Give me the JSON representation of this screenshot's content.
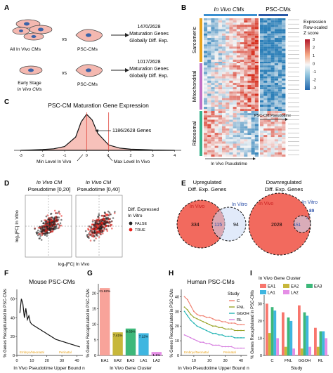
{
  "panels": {
    "A": {
      "letter": "A",
      "row1": {
        "left_label": "All In Vivo CMs",
        "vs": "vs",
        "right_label": "PSC-CMs",
        "result_line1": "1470/2628",
        "result_line2": "Maturation Genes",
        "result_line3": "Globally Diff. Exp."
      },
      "row2": {
        "left_label_line1": "Early Stage",
        "left_label_line2": "In Vivo CMs",
        "vs": "vs",
        "right_label": "PSC-CMs",
        "result_line1": "1017/2628",
        "result_line2": "Maturation Genes",
        "result_line3": "Globally Diff. Exp."
      }
    },
    "B": {
      "letter": "B",
      "col_invivo": "In Vivo CMs",
      "col_psc": "PSC-CMs",
      "row_labels": [
        "Sarcomeric",
        "Mitochondrial",
        "Ribosomal"
      ],
      "x_label": "In Vivo Pseudotime",
      "x_label2": "PSC-CM Pseudotime",
      "legend_title_line1": "Expression",
      "legend_title_line2": "Row-scaled",
      "legend_title_line3": "Z score",
      "legend_ticks": [
        "3",
        "2",
        "1",
        "0",
        "-1",
        "-2",
        "-3"
      ],
      "colors": {
        "high": "#d7301f",
        "mid": "#f7f7f7",
        "low": "#2c7fb8",
        "sarc": "#e8a21a",
        "mito": "#c26fc4",
        "ribo": "#36b28c",
        "invivo_bar": "#3a8fd0",
        "psc_bar": "#2a5aa8"
      }
    },
    "C": {
      "letter": "C",
      "title": "PSC-CM Maturation Gene Expression",
      "annotation": "1186/2628 Genes",
      "min_label": "Min Level In Vivo",
      "max_label": "Max Level In Vivo",
      "x_ticks": [
        "-3",
        "-2",
        "-1",
        "0",
        "1",
        "2",
        "3",
        "4"
      ],
      "chart_data": {
        "type": "area",
        "x": [
          -3,
          -2.5,
          -2,
          -1.5,
          -1,
          -0.5,
          -0.25,
          0,
          0.25,
          0.5,
          1,
          1.5,
          2,
          2.5,
          3,
          3.5,
          4
        ],
        "values": [
          0.0,
          0.01,
          0.02,
          0.04,
          0.1,
          0.35,
          0.75,
          0.95,
          0.8,
          0.45,
          0.14,
          0.06,
          0.03,
          0.02,
          0.01,
          0.005,
          0.0
        ],
        "xlim": [
          -3.3,
          4.3
        ]
      }
    },
    "D": {
      "letter": "D",
      "left_title_line1": "In Vivo CM",
      "left_title_line2": "Pseudotime [0,20]",
      "right_title_line1": "In Vivo CM",
      "right_title_line2": "Pseudotime [0,40]",
      "y_label": "log₂|FC| In Vitro",
      "x_label": "log₂|FC| In Vivo",
      "legend_title_line1": "Diff. Expressed",
      "legend_title_line2": "In Vitro",
      "legend_false": "FALSE",
      "legend_true": "TRUE"
    },
    "E": {
      "letter": "E",
      "up_title_line1": "Upregulated",
      "up_title_line2": "Diff. Exp. Genes",
      "down_title_line1": "Downregulated",
      "down_title_line2": "Diff. Exp. Genes",
      "in_vivo": "In Vivo",
      "in_vitro": "In Vitro",
      "up_values": {
        "vivo_only": "334",
        "both": "115",
        "vitro_only": "94"
      },
      "down_values": {
        "vivo_only": "2028",
        "both": "151",
        "vitro_only": "89"
      }
    },
    "F": {
      "letter": "F",
      "title": "Mouse PSC-CMs",
      "y_label": "% Genes Recapitulated in PSC-CMs",
      "x_label": "In Vivo Pseudotime Upper Bound n",
      "x_ticks": [
        "0",
        "10",
        "20",
        "30",
        "40"
      ],
      "y_ticks": [
        "0",
        "20",
        "40",
        "60"
      ],
      "stage_embryo": "Embryo/Neonatal",
      "stage_peri": "Perinatal",
      "chart_data": {
        "type": "line",
        "x": [
          2,
          3,
          4,
          5,
          6,
          7,
          8,
          9,
          10,
          11,
          12,
          13,
          14,
          15,
          16,
          17,
          18,
          19,
          20,
          21,
          22,
          23,
          24,
          25,
          26,
          27,
          28,
          29,
          30,
          31,
          32,
          33,
          34,
          35,
          36,
          37,
          38,
          39,
          40,
          41,
          42
        ],
        "values": [
          45,
          60,
          55,
          40,
          50,
          38,
          42,
          35,
          33,
          32,
          31,
          30,
          29,
          28,
          27,
          26,
          25,
          24,
          23,
          22,
          21,
          20,
          19,
          18,
          17,
          16.5,
          16,
          15.5,
          15,
          14.5,
          14,
          13.5,
          13,
          12.5,
          12,
          11.5,
          11,
          10.5,
          10,
          9.5,
          9
        ],
        "xlim": [
          0,
          44
        ],
        "ylim": [
          0,
          70
        ]
      }
    },
    "G": {
      "letter": "G",
      "y_label": "% Genes Recapitulated in PSC-CMs",
      "x_label": "In Vivo Gene Cluster",
      "y_ticks": [
        "0",
        "5",
        "10",
        "15",
        "20"
      ],
      "chart_data": {
        "type": "bar",
        "categories": [
          "EA1",
          "EA2",
          "EA3",
          "LA1",
          "LA2"
        ],
        "values": [
          21.62,
          7.41,
          8.63,
          7.12,
          1.1
        ],
        "labels": [
          "21.62%",
          "7.41%",
          "8.63%",
          "7.12%",
          "1.1%"
        ],
        "colors": [
          "#f8a39a",
          "#c7b73a",
          "#3db87a",
          "#3fb6e0",
          "#e58fe6"
        ],
        "ylim": [
          0,
          23
        ]
      }
    },
    "H": {
      "letter": "H",
      "title": "Human PSC-CMs",
      "y_label": "% Genes Recapitulated in PSC-CMs",
      "x_label": "In Vivo Pseudotime Upper Bound n",
      "x_ticks": [
        "10",
        "20",
        "30",
        "40"
      ],
      "y_ticks": [
        "0",
        "10",
        "20",
        "30",
        "40"
      ],
      "stage_embryo": "Embryo/Neonatal",
      "stage_peri": "Perinatal",
      "legend_title": "Study",
      "chart_data": {
        "type": "line",
        "x": [
          4,
          6,
          8,
          10,
          12,
          14,
          16,
          18,
          20,
          22,
          24,
          26,
          28,
          30,
          32,
          34,
          36,
          38,
          40,
          42
        ],
        "series": [
          {
            "name": "C",
            "color": "#f08070",
            "values": [
              40,
              38,
              34,
              30,
              28,
              27,
              27,
              26,
              26,
              25,
              24,
              24,
              23,
              23,
              22,
              22,
              22,
              21,
              21,
              21
            ]
          },
          {
            "name": "FNL",
            "color": "#9aa52a",
            "values": [
              33,
              31,
              28,
              26,
              25,
              24,
              23,
              22,
              21,
              20,
              20,
              19,
              19,
              18,
              18,
              18,
              17,
              17,
              17,
              17
            ]
          },
          {
            "name": "GGOH",
            "color": "#23b4b4",
            "values": [
              30,
              27,
              24,
              22,
              20,
              19,
              18,
              17,
              16,
              15,
              15,
              14,
              14,
              13,
              13,
              13,
              12,
              12,
              12,
              12
            ]
          },
          {
            "name": "RL",
            "color": "#d77fe0",
            "values": [
              14,
              13,
              12,
              11,
              10,
              9,
              9,
              8,
              8,
              7,
              7,
              7,
              6,
              6,
              6,
              6,
              5,
              5,
              5,
              5
            ]
          }
        ],
        "xlim": [
          2,
          44
        ],
        "ylim": [
          0,
          45
        ]
      }
    },
    "I": {
      "letter": "I",
      "legend_title": "In Vivo Gene Cluster",
      "y_label": "% Genes Recapitulated in PSC-CMs",
      "x_label": "Study",
      "y_ticks": [
        "0",
        "10",
        "20",
        "30"
      ],
      "chart_data": {
        "type": "bar",
        "categories": [
          "C",
          "FNL",
          "GGOH",
          "RL"
        ],
        "series": [
          {
            "name": "EA1",
            "color": "#f8766d",
            "values": [
              30,
              25,
              29,
              16
            ]
          },
          {
            "name": "EA2",
            "color": "#c7b73a",
            "values": [
              13,
              5,
              4,
              5
            ]
          },
          {
            "name": "EA3",
            "color": "#3db87a",
            "values": [
              28,
              22,
              25,
              14
            ]
          },
          {
            "name": "LA1",
            "color": "#3fb6e0",
            "values": [
              26,
              20,
              23,
              14
            ]
          },
          {
            "name": "LA2",
            "color": "#e58fe6",
            "values": [
              10,
              4,
              5,
              10
            ]
          }
        ],
        "ylim": [
          0,
          35
        ]
      }
    }
  }
}
